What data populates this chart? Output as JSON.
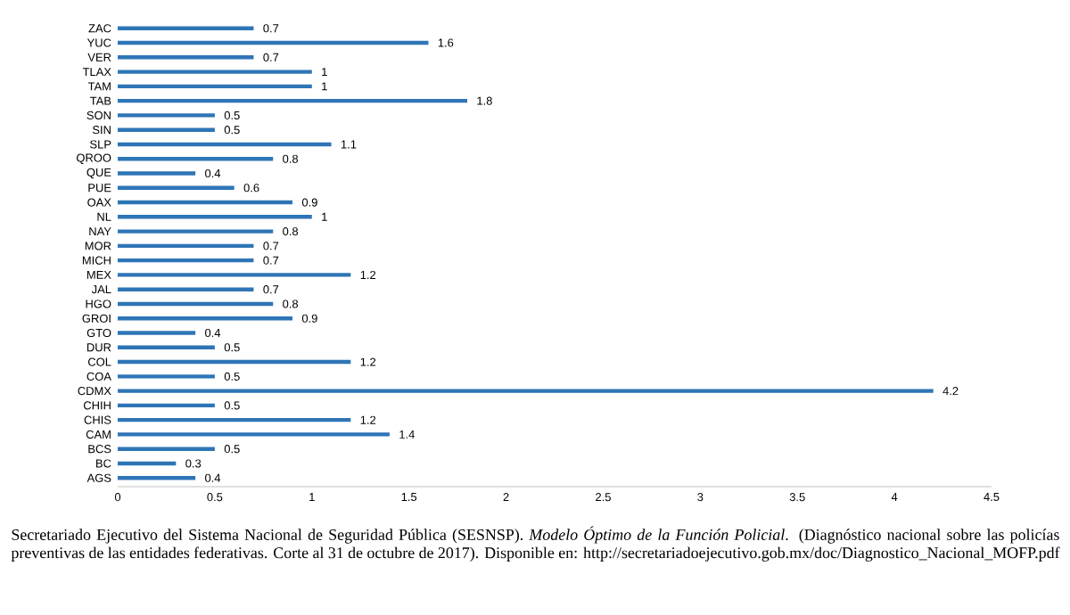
{
  "chart_data": {
    "type": "bar",
    "orientation": "horizontal",
    "color": "#2e75b6",
    "data_labels": true,
    "categories": [
      "ZAC",
      "YUC",
      "VER",
      "TLAX",
      "TAM",
      "TAB",
      "SON",
      "SIN",
      "SLP",
      "QROO",
      "QUE",
      "PUE",
      "OAX",
      "NL",
      "NAY",
      "MOR",
      "MICH",
      "MEX",
      "JAL",
      "HGO",
      "GROI",
      "GTO",
      "DUR",
      "COL",
      "COA",
      "CDMX",
      "CHIH",
      "CHIS",
      "CAM",
      "BCS",
      "BC",
      "AGS"
    ],
    "values": [
      0.7,
      1.6,
      0.7,
      1,
      1,
      1.8,
      0.5,
      0.5,
      1.1,
      0.8,
      0.4,
      0.6,
      0.9,
      1,
      0.8,
      0.7,
      0.7,
      1.2,
      0.7,
      0.8,
      0.9,
      0.4,
      0.5,
      1.2,
      0.5,
      4.2,
      0.5,
      1.2,
      1.4,
      0.5,
      0.3,
      0.4
    ],
    "xlim": [
      0,
      4.5
    ],
    "xticks": [
      0,
      0.5,
      1,
      1.5,
      2,
      2.5,
      3,
      3.5,
      4,
      4.5
    ],
    "annotations": [
      "Secretariado Ejecutivo del Sistema Nacional de Seguridad Pública (SESNSP). *Modelo Óptimo de la Función Policial*. (Diagnóstico nacional sobre las policías preventivas de las entidades federativas. Corte al 31 de octubre de 2017). Disponible en: http://secretariadoejecutivo.gob.mx/doc/Diagnostico_Nacional_MOFP.pdf"
    ]
  }
}
